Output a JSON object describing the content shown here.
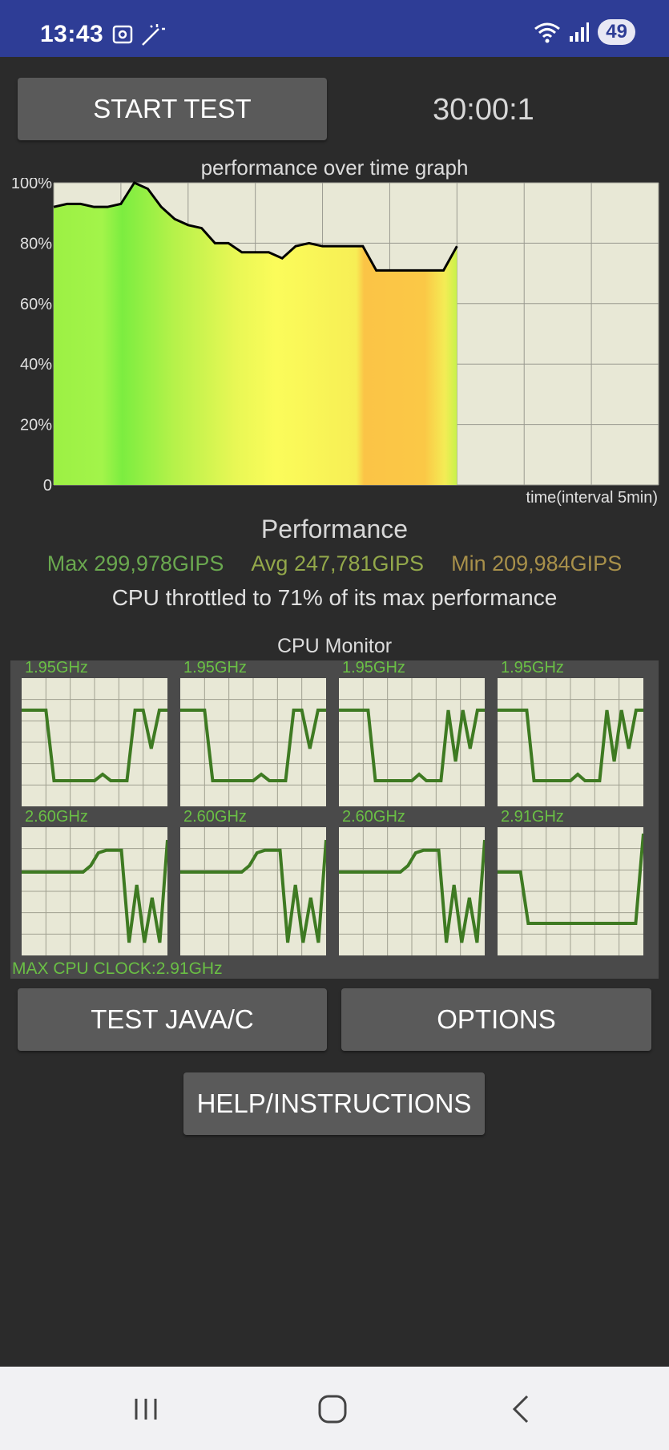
{
  "status_bar": {
    "time": "13:43",
    "battery": "49",
    "icons": [
      "screenshot-icon",
      "magic-wand-icon",
      "wifi-icon",
      "signal-icon"
    ]
  },
  "controls": {
    "start_test": "START TEST",
    "timer": "30:00:1"
  },
  "graph": {
    "title": "performance over time graph",
    "y_ticks": [
      "100%",
      "80%",
      "60%",
      "40%",
      "20%",
      "0"
    ],
    "x_label": "time(interval 5min)"
  },
  "chart_data": {
    "type": "line",
    "title": "performance over time graph",
    "xlabel": "time(interval 5min)",
    "ylabel": "",
    "ylim": [
      0,
      100
    ],
    "grid": true,
    "x": [
      0,
      1,
      2,
      3,
      4,
      5,
      6,
      7,
      8,
      9,
      10,
      11,
      12,
      13,
      14,
      15,
      16,
      17,
      18,
      19,
      20,
      21,
      22,
      23,
      24,
      25,
      26,
      27,
      28,
      29,
      30
    ],
    "values": [
      92,
      93,
      93,
      92,
      92,
      93,
      100,
      98,
      92,
      88,
      86,
      85,
      80,
      80,
      77,
      77,
      77,
      75,
      79,
      80,
      79,
      79,
      79,
      79,
      71,
      71,
      71,
      71,
      71,
      71,
      79
    ]
  },
  "performance": {
    "heading": "Performance",
    "max": "Max 299,978GIPS",
    "avg": "Avg 247,781GIPS",
    "min": "Min 209,984GIPS",
    "throttle_text": "CPU throttled to 71% of its max performance"
  },
  "cpu_monitor": {
    "title": "CPU Monitor",
    "max_clock": "MAX CPU CLOCK:2.91GHz",
    "cores": [
      {
        "freq": "1.95GHz",
        "values": [
          0.75,
          0.75,
          0.75,
          0.75,
          0.2,
          0.2,
          0.2,
          0.2,
          0.2,
          0.2,
          0.25,
          0.2,
          0.2,
          0.2,
          0.75,
          0.75,
          0.45,
          0.75,
          0.75
        ]
      },
      {
        "freq": "1.95GHz",
        "values": [
          0.75,
          0.75,
          0.75,
          0.75,
          0.2,
          0.2,
          0.2,
          0.2,
          0.2,
          0.2,
          0.25,
          0.2,
          0.2,
          0.2,
          0.75,
          0.75,
          0.45,
          0.75,
          0.75
        ]
      },
      {
        "freq": "1.95GHz",
        "values": [
          0.75,
          0.75,
          0.75,
          0.75,
          0.75,
          0.2,
          0.2,
          0.2,
          0.2,
          0.2,
          0.2,
          0.25,
          0.2,
          0.2,
          0.2,
          0.75,
          0.35,
          0.75,
          0.45,
          0.75,
          0.75
        ]
      },
      {
        "freq": "1.95GHz",
        "values": [
          0.75,
          0.75,
          0.75,
          0.75,
          0.75,
          0.2,
          0.2,
          0.2,
          0.2,
          0.2,
          0.2,
          0.25,
          0.2,
          0.2,
          0.2,
          0.75,
          0.35,
          0.75,
          0.45,
          0.75,
          0.75
        ]
      },
      {
        "freq": "2.60GHz",
        "values": [
          0.65,
          0.65,
          0.65,
          0.65,
          0.65,
          0.65,
          0.65,
          0.65,
          0.65,
          0.7,
          0.8,
          0.82,
          0.82,
          0.82,
          0.1,
          0.55,
          0.1,
          0.45,
          0.1,
          0.9
        ]
      },
      {
        "freq": "2.60GHz",
        "values": [
          0.65,
          0.65,
          0.65,
          0.65,
          0.65,
          0.65,
          0.65,
          0.65,
          0.65,
          0.7,
          0.8,
          0.82,
          0.82,
          0.82,
          0.1,
          0.55,
          0.1,
          0.45,
          0.1,
          0.9
        ]
      },
      {
        "freq": "2.60GHz",
        "values": [
          0.65,
          0.65,
          0.65,
          0.65,
          0.65,
          0.65,
          0.65,
          0.65,
          0.65,
          0.7,
          0.8,
          0.82,
          0.82,
          0.82,
          0.1,
          0.55,
          0.1,
          0.45,
          0.1,
          0.9
        ]
      },
      {
        "freq": "2.91GHz",
        "values": [
          0.65,
          0.65,
          0.65,
          0.65,
          0.25,
          0.25,
          0.25,
          0.25,
          0.25,
          0.25,
          0.25,
          0.25,
          0.25,
          0.25,
          0.25,
          0.25,
          0.25,
          0.25,
          0.25,
          0.95
        ]
      }
    ]
  },
  "buttons": {
    "test_java": "TEST JAVA/C",
    "options": "OPTIONS",
    "help": "HELP/INSTRUCTIONS"
  },
  "nav": {
    "recents": "recents-icon",
    "home": "home-icon",
    "back": "back-icon"
  }
}
